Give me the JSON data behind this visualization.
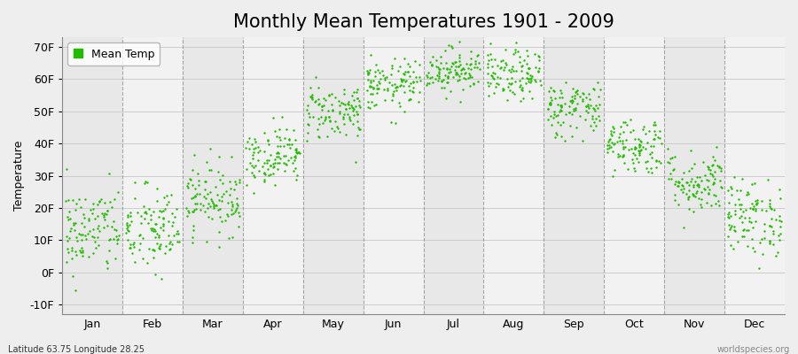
{
  "title": "Monthly Mean Temperatures 1901 - 2009",
  "ylabel": "Temperature",
  "xlabel_labels": [
    "Jan",
    "Feb",
    "Mar",
    "Apr",
    "May",
    "Jun",
    "Jul",
    "Aug",
    "Sep",
    "Oct",
    "Nov",
    "Dec"
  ],
  "ylim": [
    -13,
    73
  ],
  "yticks": [
    -10,
    0,
    10,
    20,
    30,
    40,
    50,
    60,
    70
  ],
  "ytick_labels": [
    "-10F",
    "0F",
    "10F",
    "20F",
    "30F",
    "40F",
    "50F",
    "60F",
    "70F"
  ],
  "dot_color": "#22bb00",
  "background_color": "#eeeeee",
  "band_even_color": "#e8e8e8",
  "band_odd_color": "#f2f2f2",
  "grid_color": "#cccccc",
  "vline_color": "#888888",
  "title_fontsize": 15,
  "axis_fontsize": 9,
  "subtitle_left": "Latitude 63.75 Longitude 28.25",
  "subtitle_right": "worldspecies.org",
  "legend_label": "Mean Temp",
  "monthly_means_F": [
    13.0,
    13.0,
    23.0,
    36.5,
    50.0,
    58.0,
    63.0,
    61.0,
    51.0,
    39.5,
    28.0,
    17.0
  ],
  "monthly_stds_F": [
    7.0,
    7.0,
    5.5,
    4.5,
    4.5,
    4.0,
    3.5,
    4.0,
    4.5,
    4.5,
    5.0,
    6.0
  ],
  "n_years": 109,
  "seed": 42
}
